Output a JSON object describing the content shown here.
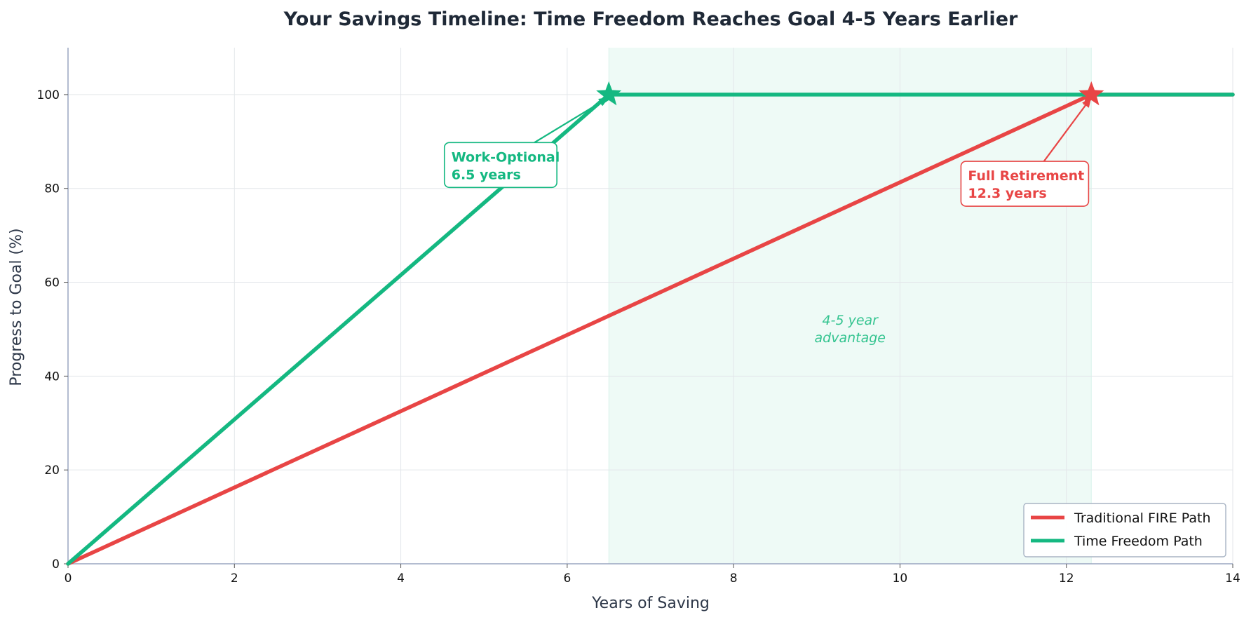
{
  "chart_data": {
    "type": "line",
    "title": "Your Savings Timeline: Time Freedom Reaches Goal 4-5 Years Earlier",
    "xlabel": "Years of Saving",
    "ylabel": "Progress to Goal (%)",
    "xlim": [
      0,
      14
    ],
    "ylim": [
      0,
      110
    ],
    "xticks": [
      "0",
      "2",
      "4",
      "6",
      "8",
      "10",
      "12",
      "14"
    ],
    "yticks": [
      "0",
      "20",
      "40",
      "60",
      "80",
      "100"
    ],
    "grid": true,
    "legend_position": "lower-right",
    "series": [
      {
        "name": "Traditional FIRE Path",
        "color": "#e84545",
        "points": [
          [
            0,
            0
          ],
          [
            12.3,
            100
          ],
          [
            14,
            100
          ]
        ]
      },
      {
        "name": "Time Freedom Path",
        "color": "#14b881",
        "points": [
          [
            0,
            0
          ],
          [
            6.5,
            100
          ],
          [
            14,
            100
          ]
        ]
      }
    ],
    "shaded_region": {
      "x_start": 6.5,
      "x_end": 12.3,
      "color": "#14b881"
    },
    "markers": [
      {
        "x": 6.5,
        "y": 100,
        "color": "#14b881",
        "shape": "star"
      },
      {
        "x": 12.3,
        "y": 100,
        "color": "#e84545",
        "shape": "star"
      }
    ],
    "annotations": [
      {
        "lines": [
          "Work-Optional",
          "6.5 years"
        ],
        "color": "#14b881",
        "x": 5.2,
        "y": 85,
        "target": [
          6.5,
          100
        ]
      },
      {
        "lines": [
          "Full Retirement",
          "12.3 years"
        ],
        "color": "#e84545",
        "x": 11.5,
        "y": 81,
        "target": [
          12.3,
          100
        ]
      }
    ],
    "region_note": {
      "lines": [
        "4-5 year",
        "advantage"
      ],
      "x": 9.4,
      "y": 50
    }
  }
}
